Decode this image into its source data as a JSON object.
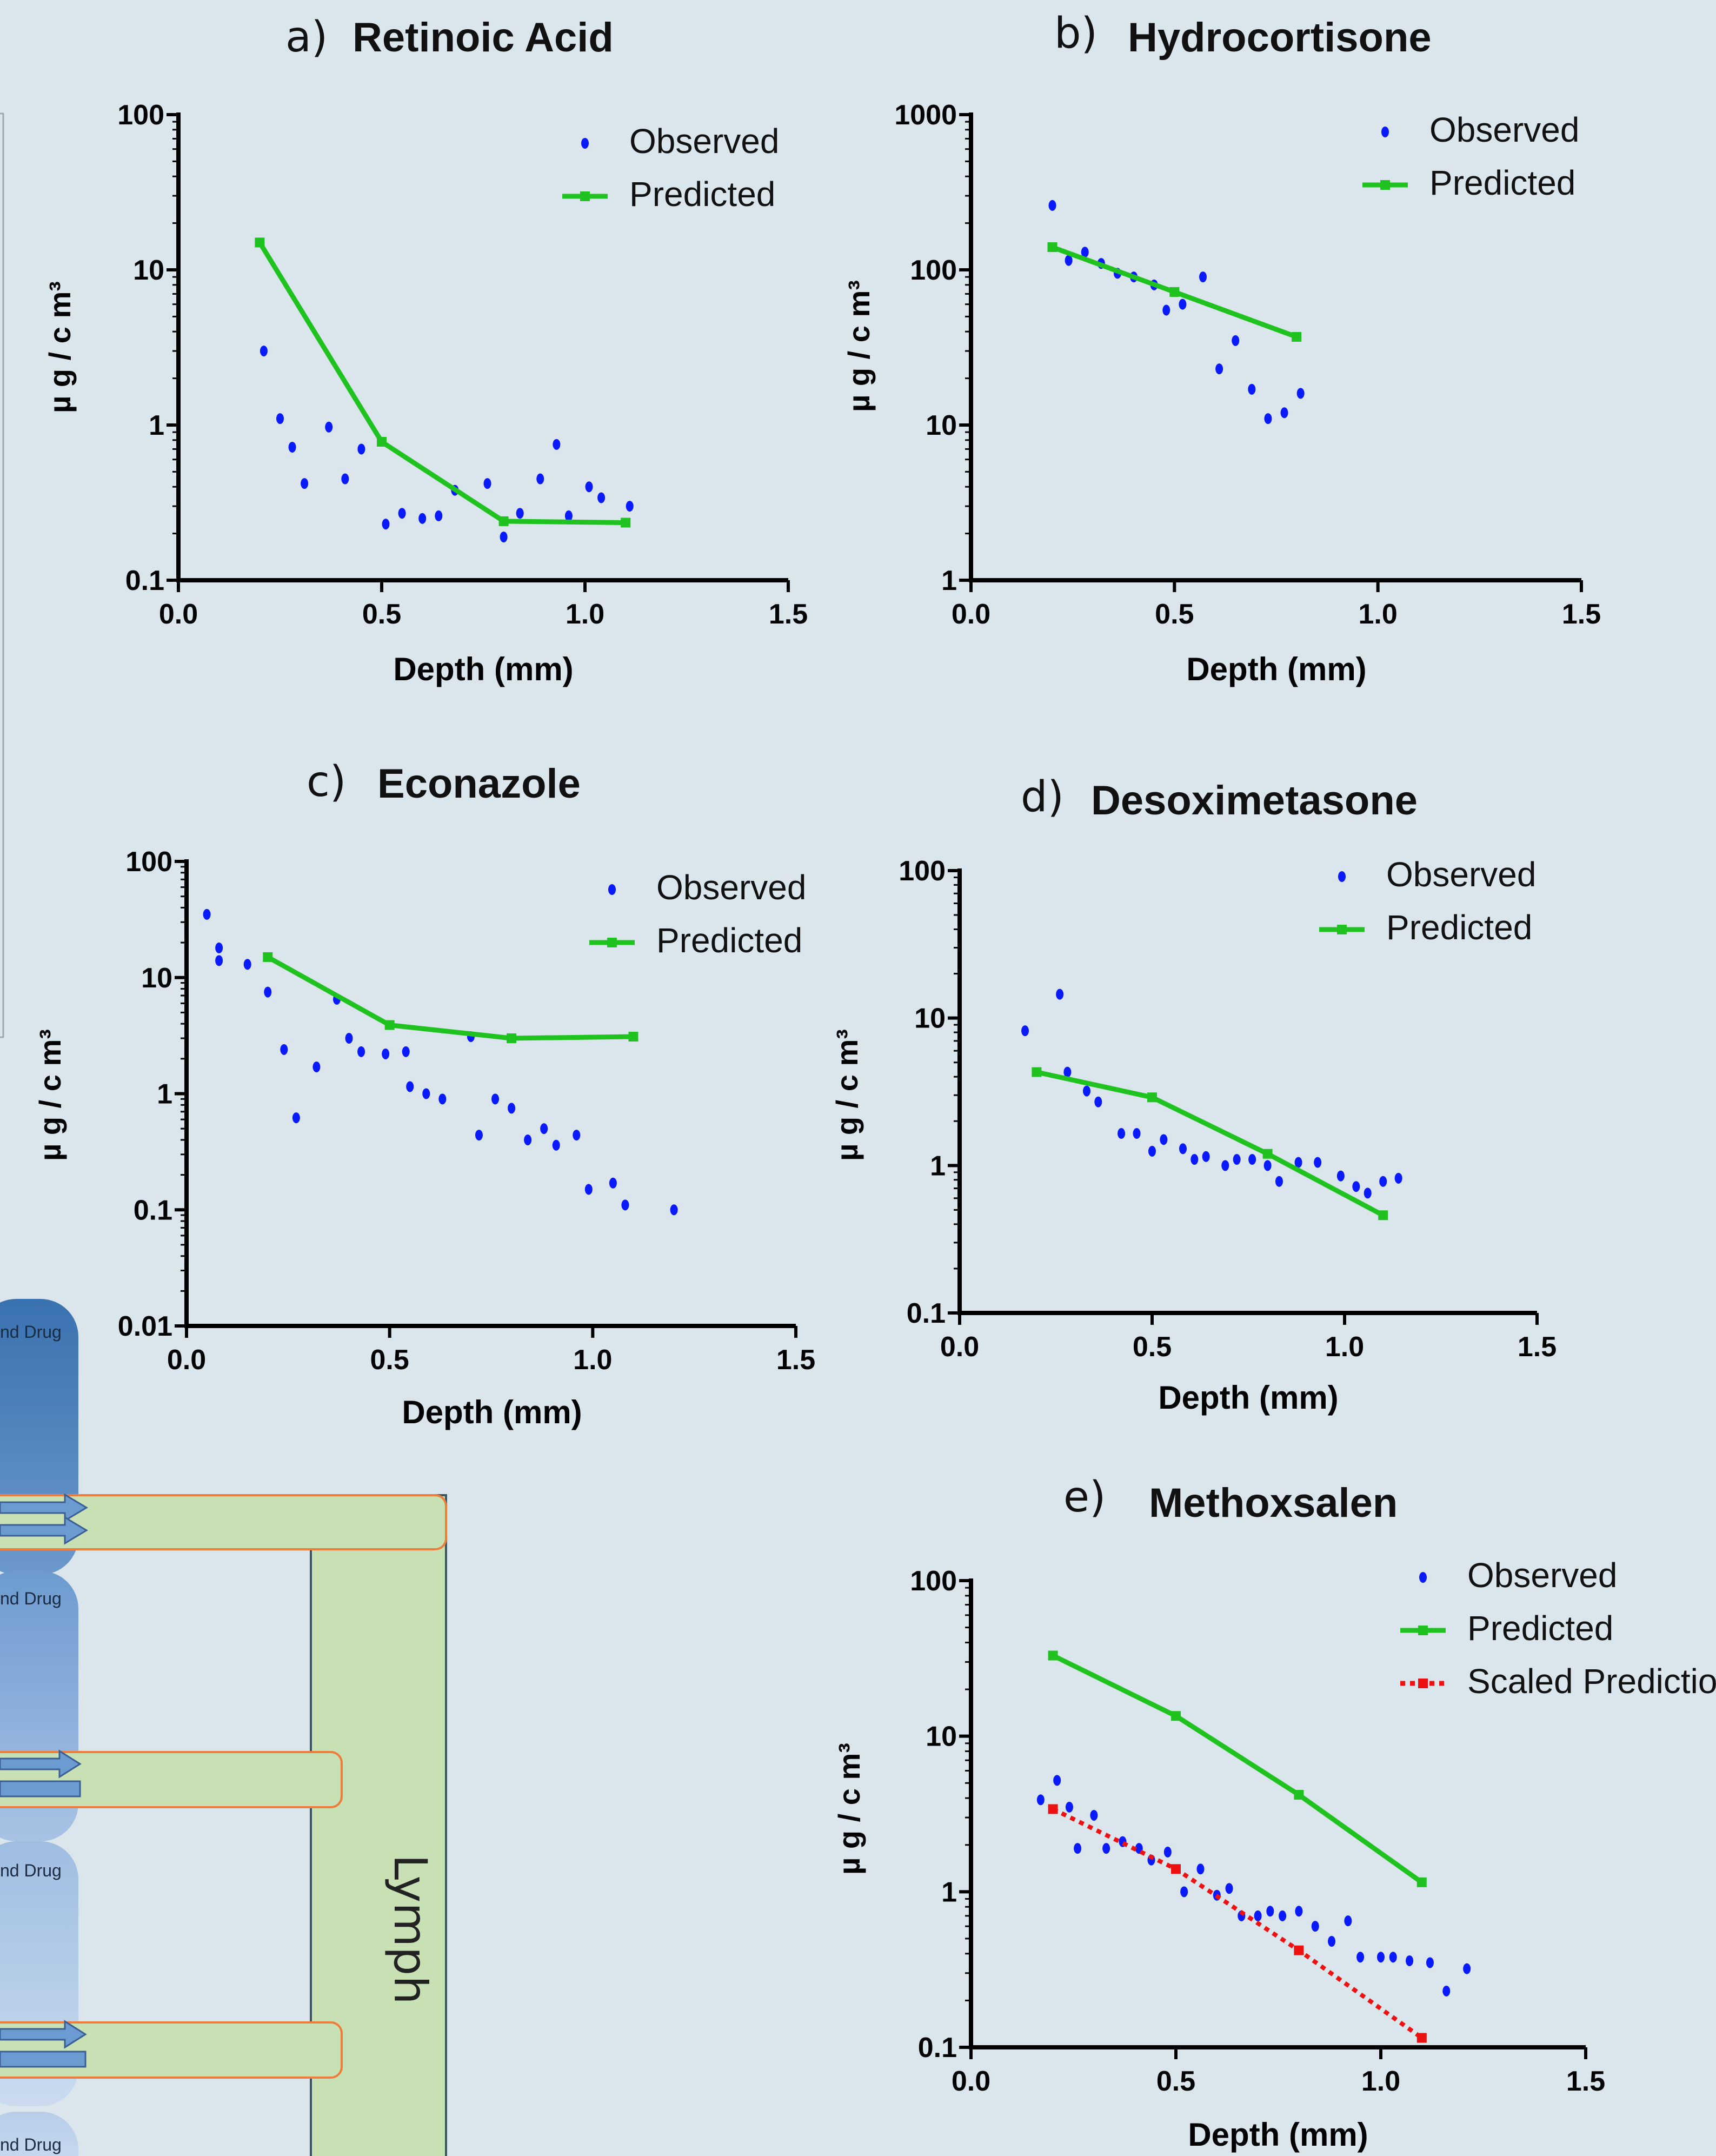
{
  "chart_data": [
    {
      "type": "scatter",
      "panel_letter": "a)",
      "title": "Retinoic Acid",
      "xlabel": "Depth (mm)",
      "ylabel": "µ g / c m³",
      "xlim": [
        0,
        1.5
      ],
      "ylim": [
        0.1,
        100
      ],
      "yscale": "log",
      "xticks": [
        "0.0",
        "0.5",
        "1.0",
        "1.5"
      ],
      "yticks": [
        "0.1",
        "1",
        "10",
        "100"
      ],
      "legend": "top-right",
      "series": [
        {
          "name": "Observed",
          "kind": "points",
          "color": "#0a1aff",
          "x": [
            0.21,
            0.25,
            0.28,
            0.31,
            0.37,
            0.41,
            0.45,
            0.51,
            0.55,
            0.6,
            0.64,
            0.68,
            0.76,
            0.8,
            0.84,
            0.89,
            0.93,
            0.96,
            1.01,
            1.04,
            1.11
          ],
          "y": [
            3.0,
            1.1,
            0.72,
            0.42,
            0.97,
            0.45,
            0.7,
            0.23,
            0.27,
            0.25,
            0.26,
            0.38,
            0.42,
            0.19,
            0.27,
            0.45,
            0.75,
            0.26,
            0.4,
            0.34,
            0.3
          ]
        },
        {
          "name": "Predicted",
          "kind": "line",
          "color": "#1fc21f",
          "x": [
            0.2,
            0.5,
            0.8,
            1.1
          ],
          "y": [
            15,
            0.78,
            0.24,
            0.235
          ]
        }
      ]
    },
    {
      "type": "scatter",
      "panel_letter": "b)",
      "title": "Hydrocortisone",
      "xlabel": "Depth (mm)",
      "ylabel": "µ g / c m³",
      "xlim": [
        0,
        1.5
      ],
      "ylim": [
        1,
        1000
      ],
      "yscale": "log",
      "xticks": [
        "0.0",
        "0.5",
        "1.0",
        "1.5"
      ],
      "yticks": [
        "1",
        "10",
        "100",
        "1000"
      ],
      "legend": "top-right",
      "series": [
        {
          "name": "Observed",
          "kind": "points",
          "color": "#0a1aff",
          "x": [
            0.2,
            0.24,
            0.28,
            0.32,
            0.36,
            0.4,
            0.45,
            0.48,
            0.52,
            0.57,
            0.61,
            0.65,
            0.69,
            0.73,
            0.77,
            0.81
          ],
          "y": [
            260,
            115,
            130,
            110,
            95,
            90,
            80,
            55,
            60,
            90,
            23,
            35,
            17,
            11,
            12,
            16
          ]
        },
        {
          "name": "Predicted",
          "kind": "line",
          "color": "#1fc21f",
          "x": [
            0.2,
            0.5,
            0.8
          ],
          "y": [
            140,
            72,
            37
          ]
        }
      ]
    },
    {
      "type": "scatter",
      "panel_letter": "c)",
      "title": "Econazole",
      "xlabel": "Depth (mm)",
      "ylabel": "µ g / c m³",
      "xlim": [
        0,
        1.5
      ],
      "ylim": [
        0.01,
        100
      ],
      "yscale": "log",
      "xticks": [
        "0.0",
        "0.5",
        "1.0",
        "1.5"
      ],
      "yticks": [
        "0.01",
        "0.1",
        "1",
        "10",
        "100"
      ],
      "legend": "top-right",
      "series": [
        {
          "name": "Observed",
          "kind": "points",
          "color": "#0a1aff",
          "x": [
            0.05,
            0.08,
            0.08,
            0.15,
            0.2,
            0.24,
            0.27,
            0.32,
            0.37,
            0.4,
            0.43,
            0.49,
            0.54,
            0.55,
            0.59,
            0.63,
            0.7,
            0.72,
            0.76,
            0.8,
            0.84,
            0.88,
            0.91,
            0.96,
            0.99,
            1.05,
            1.08,
            1.2
          ],
          "y": [
            35,
            18,
            14,
            13,
            7.5,
            2.4,
            0.62,
            1.7,
            6.5,
            3.0,
            2.3,
            2.2,
            2.3,
            1.15,
            1.0,
            0.9,
            3.1,
            0.44,
            0.9,
            0.75,
            0.4,
            0.5,
            0.36,
            0.44,
            0.15,
            0.17,
            0.11,
            0.1
          ]
        },
        {
          "name": "Predicted",
          "kind": "line",
          "color": "#1fc21f",
          "x": [
            0.2,
            0.5,
            0.8,
            1.1
          ],
          "y": [
            15,
            3.9,
            3.0,
            3.1
          ]
        }
      ]
    },
    {
      "type": "scatter",
      "panel_letter": "d)",
      "title": "Desoximetasone",
      "xlabel": "Depth (mm)",
      "ylabel": "µ g / c m³",
      "xlim": [
        0,
        1.5
      ],
      "ylim": [
        0.1,
        100
      ],
      "yscale": "log",
      "xticks": [
        "0.0",
        "0.5",
        "1.0",
        "1.5"
      ],
      "yticks": [
        "0.1",
        "1",
        "10",
        "100"
      ],
      "legend": "top-right",
      "series": [
        {
          "name": "Observed",
          "kind": "points",
          "color": "#0a1aff",
          "x": [
            0.17,
            0.26,
            0.28,
            0.33,
            0.36,
            0.42,
            0.46,
            0.5,
            0.53,
            0.58,
            0.61,
            0.64,
            0.69,
            0.72,
            0.76,
            0.8,
            0.83,
            0.88,
            0.93,
            0.99,
            1.03,
            1.06,
            1.1,
            1.14
          ],
          "y": [
            8.2,
            14.5,
            4.3,
            3.2,
            2.7,
            1.65,
            1.65,
            1.25,
            1.5,
            1.3,
            1.1,
            1.15,
            1.0,
            1.1,
            1.1,
            1.0,
            0.78,
            1.05,
            1.05,
            0.85,
            0.72,
            0.65,
            0.78,
            0.82
          ]
        },
        {
          "name": "Predicted",
          "kind": "line",
          "color": "#1fc21f",
          "x": [
            0.2,
            0.5,
            0.8,
            1.1
          ],
          "y": [
            4.3,
            2.9,
            1.2,
            0.46
          ]
        }
      ]
    },
    {
      "type": "scatter",
      "panel_letter": "e)",
      "title": "Methoxsalen",
      "xlabel": "Depth (mm)",
      "ylabel": "µ g / c m³",
      "xlim": [
        0,
        1.5
      ],
      "ylim": [
        0.1,
        100
      ],
      "yscale": "log",
      "xticks": [
        "0.0",
        "0.5",
        "1.0",
        "1.5"
      ],
      "yticks": [
        "0.1",
        "1",
        "10",
        "100"
      ],
      "legend": "top-right",
      "series": [
        {
          "name": "Observed",
          "kind": "points",
          "color": "#0a1aff",
          "x": [
            0.17,
            0.21,
            0.24,
            0.26,
            0.3,
            0.33,
            0.37,
            0.41,
            0.44,
            0.48,
            0.52,
            0.56,
            0.6,
            0.63,
            0.66,
            0.7,
            0.73,
            0.76,
            0.8,
            0.84,
            0.88,
            0.92,
            0.95,
            1.0,
            1.03,
            1.07,
            1.12,
            1.16,
            1.21
          ],
          "y": [
            3.9,
            5.2,
            3.5,
            1.9,
            3.1,
            1.9,
            2.1,
            1.9,
            1.6,
            1.8,
            1.0,
            1.4,
            0.95,
            1.05,
            0.7,
            0.7,
            0.75,
            0.7,
            0.75,
            0.6,
            0.48,
            0.65,
            0.38,
            0.38,
            0.38,
            0.36,
            0.35,
            0.23,
            0.32
          ]
        },
        {
          "name": "Predicted",
          "kind": "line",
          "color": "#1fc21f",
          "x": [
            0.2,
            0.5,
            0.8,
            1.1
          ],
          "y": [
            33,
            13.5,
            4.2,
            1.15
          ]
        },
        {
          "name": "Scaled Prediction*",
          "kind": "dotted",
          "color": "#ee1111",
          "x": [
            0.2,
            0.5,
            0.8,
            1.1
          ],
          "y": [
            3.4,
            1.4,
            0.42,
            0.115
          ]
        }
      ]
    }
  ],
  "diagram": {
    "compartment_labels": [
      "nd Drug",
      "nd Drug",
      "nd Drug",
      "nd Drug"
    ],
    "lymph_label": "Lymph"
  }
}
